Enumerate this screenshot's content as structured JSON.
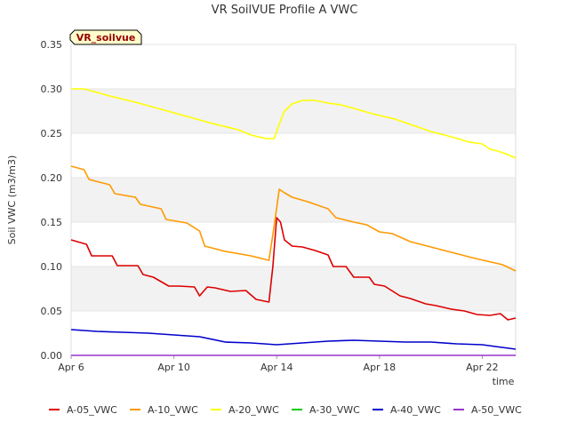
{
  "chart_data": {
    "type": "line",
    "title": "VR SoilVUE Profile A VWC",
    "xlabel": "time",
    "ylabel": "Soil VWC (m3/m3)",
    "badge": "VR_soilvue",
    "x_start": "Apr 6",
    "x_end": "Apr 23",
    "xlim": [
      0,
      17.3
    ],
    "ylim": [
      0,
      0.35
    ],
    "xticks": [
      {
        "x": 0,
        "label": "Apr 6"
      },
      {
        "x": 4,
        "label": "Apr 10"
      },
      {
        "x": 8,
        "label": "Apr 14"
      },
      {
        "x": 12,
        "label": "Apr 18"
      },
      {
        "x": 16,
        "label": "Apr 22"
      }
    ],
    "yticks": [
      {
        "y": 0.0,
        "label": "0.00"
      },
      {
        "y": 0.05,
        "label": "0.05"
      },
      {
        "y": 0.1,
        "label": "0.10"
      },
      {
        "y": 0.15,
        "label": "0.15"
      },
      {
        "y": 0.2,
        "label": "0.20"
      },
      {
        "y": 0.25,
        "label": "0.25"
      },
      {
        "y": 0.3,
        "label": "0.30"
      },
      {
        "y": 0.35,
        "label": "0.35"
      }
    ],
    "grid": "horizontal-bands",
    "legend_position": "bottom",
    "series": [
      {
        "name": "A-05_VWC",
        "color": "#dd0000",
        "x": [
          0,
          0.6,
          0.8,
          1.6,
          1.8,
          2.6,
          2.8,
          3.2,
          3.8,
          4.2,
          4.8,
          5.0,
          5.3,
          5.6,
          6.2,
          6.8,
          7.2,
          7.7,
          7.85,
          8.0,
          8.15,
          8.3,
          8.6,
          9.0,
          9.5,
          10.0,
          10.2,
          10.7,
          11.0,
          11.6,
          11.8,
          12.2,
          12.8,
          13.2,
          13.8,
          14.2,
          14.8,
          15.3,
          15.8,
          16.3,
          16.7,
          17.0,
          17.3
        ],
        "y": [
          0.13,
          0.125,
          0.112,
          0.112,
          0.101,
          0.101,
          0.091,
          0.088,
          0.078,
          0.078,
          0.077,
          0.067,
          0.077,
          0.076,
          0.072,
          0.073,
          0.063,
          0.06,
          0.1,
          0.155,
          0.15,
          0.13,
          0.123,
          0.122,
          0.118,
          0.113,
          0.1,
          0.1,
          0.088,
          0.088,
          0.08,
          0.078,
          0.067,
          0.064,
          0.058,
          0.056,
          0.052,
          0.05,
          0.046,
          0.045,
          0.047,
          0.04,
          0.042
        ]
      },
      {
        "name": "A-10_VWC",
        "color": "#ff9900",
        "x": [
          0,
          0.5,
          0.7,
          1.5,
          1.7,
          2.5,
          2.7,
          3.5,
          3.7,
          4.5,
          5.0,
          5.2,
          6.0,
          7.0,
          7.7,
          7.9,
          8.1,
          8.3,
          8.6,
          9.2,
          10.0,
          10.3,
          11.0,
          11.5,
          12.0,
          12.5,
          13.2,
          14.0,
          14.8,
          15.6,
          16.2,
          16.8,
          17.3
        ],
        "y": [
          0.213,
          0.209,
          0.198,
          0.192,
          0.182,
          0.178,
          0.17,
          0.165,
          0.153,
          0.149,
          0.14,
          0.123,
          0.117,
          0.112,
          0.107,
          0.145,
          0.187,
          0.183,
          0.178,
          0.173,
          0.165,
          0.155,
          0.15,
          0.147,
          0.139,
          0.137,
          0.128,
          0.122,
          0.116,
          0.11,
          0.106,
          0.102,
          0.095
        ]
      },
      {
        "name": "A-20_VWC",
        "color": "#ffff00",
        "x": [
          0,
          0.5,
          1.5,
          2.5,
          3.5,
          4.5,
          5.5,
          6.5,
          7.0,
          7.6,
          7.9,
          8.1,
          8.3,
          8.6,
          9.0,
          9.5,
          10.0,
          10.5,
          11.0,
          11.6,
          12.0,
          12.6,
          13.2,
          14.0,
          14.8,
          15.5,
          16.0,
          16.3,
          16.6,
          17.0,
          17.3
        ],
        "y": [
          0.3,
          0.3,
          0.292,
          0.285,
          0.277,
          0.269,
          0.261,
          0.254,
          0.248,
          0.244,
          0.244,
          0.26,
          0.275,
          0.283,
          0.287,
          0.287,
          0.284,
          0.282,
          0.278,
          0.273,
          0.27,
          0.266,
          0.26,
          0.252,
          0.246,
          0.24,
          0.238,
          0.232,
          0.23,
          0.226,
          0.222
        ]
      },
      {
        "name": "A-30_VWC",
        "color": "#00cc00",
        "x": [],
        "y": []
      },
      {
        "name": "A-40_VWC",
        "color": "#0000cc",
        "x": [
          0,
          1,
          2,
          3,
          4,
          5,
          6,
          7,
          8,
          9,
          10,
          11,
          12,
          13,
          14,
          15,
          16,
          16.5,
          17.3
        ],
        "y": [
          0.029,
          0.027,
          0.026,
          0.025,
          0.023,
          0.021,
          0.015,
          0.014,
          0.012,
          0.014,
          0.016,
          0.017,
          0.016,
          0.015,
          0.015,
          0.013,
          0.012,
          0.01,
          0.007
        ]
      },
      {
        "name": "A-50_VWC",
        "color": "#9933cc",
        "x": [
          0,
          17.3
        ],
        "y": [
          0.0,
          0.0
        ]
      }
    ]
  }
}
